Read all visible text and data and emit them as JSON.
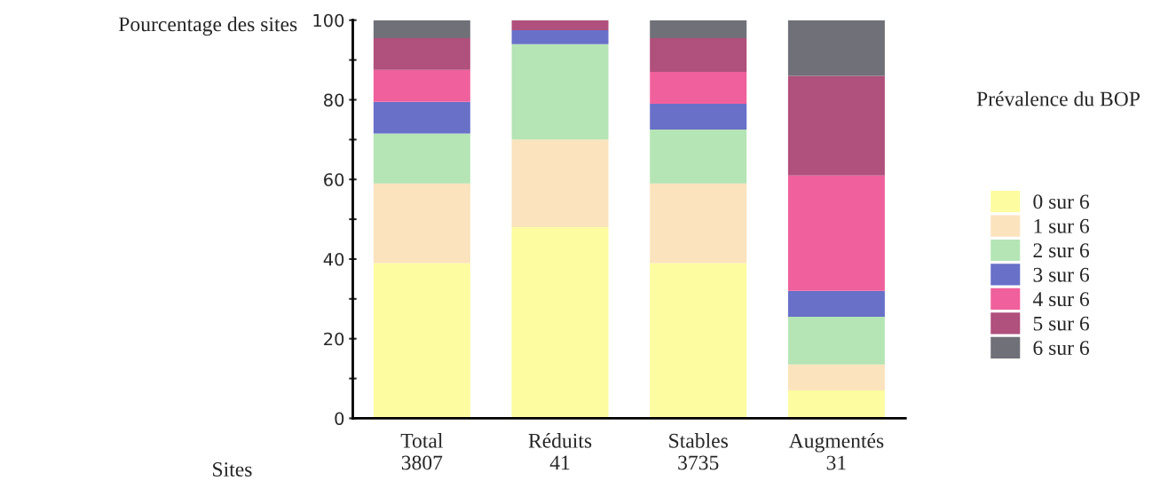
{
  "chart_data": {
    "type": "bar",
    "stacked": true,
    "ylabel": "Pourcentage des sites",
    "xlabel": "Sites",
    "legend_title": "Prévalence du BOP",
    "categories": [
      "Total\n3807",
      "Réduits\n41",
      "Stables\n3735",
      "Augmentés\n31"
    ],
    "series": [
      {
        "name": "0 sur 6",
        "color": "#fdfca0",
        "values": [
          39,
          48,
          39,
          7
        ]
      },
      {
        "name": "1 sur 6",
        "color": "#fbe3bd",
        "values": [
          20,
          22,
          20,
          6.5
        ]
      },
      {
        "name": "2 sur 6",
        "color": "#b5e5b5",
        "values": [
          12.5,
          24,
          13.5,
          12
        ]
      },
      {
        "name": "3 sur 6",
        "color": "#6870c8",
        "values": [
          8,
          3.5,
          6.5,
          6.5
        ]
      },
      {
        "name": "4 sur 6",
        "color": "#f0609c",
        "values": [
          8,
          0,
          8,
          29
        ]
      },
      {
        "name": "5 sur 6",
        "color": "#b0507c",
        "values": [
          8,
          2.5,
          8.5,
          25
        ]
      },
      {
        "name": "6 sur 6",
        "color": "#707078",
        "values": [
          4.5,
          0,
          4.5,
          14
        ]
      }
    ],
    "ylim": [
      0,
      100
    ],
    "yticks": [
      0,
      {
        "value": 10,
        "label": null
      },
      20,
      {
        "value": 30,
        "label": null
      },
      40,
      {
        "value": 50,
        "label": null
      },
      60,
      {
        "value": 70,
        "label": null
      },
      80,
      {
        "value": 90,
        "label": null
      },
      100
    ],
    "grid": false,
    "legend": "right"
  }
}
